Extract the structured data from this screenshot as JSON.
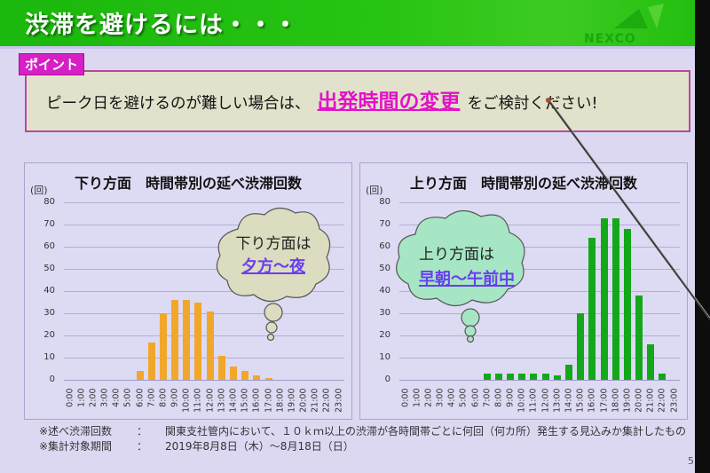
{
  "header": {
    "title": "渋滞を避けるには・・・",
    "logo_text": "NEXCO"
  },
  "point": {
    "tag": "ポイント",
    "text_before": "ピーク日を避けるのが難しい場合は、",
    "highlight": "出発時間の変更",
    "text_after": "をご検討ください!"
  },
  "colors": {
    "header_green": "#1fbb0f",
    "point_magenta": "#d61fc4",
    "down_bar": "#f0a72a",
    "up_bar": "#12a81a",
    "cloud_left": "#dcdcc0",
    "cloud_right": "#a6e6c4",
    "cloud_em": "#6a3df0"
  },
  "clouds": {
    "left": {
      "line1": "下り方面は",
      "line2": "夕方～夜"
    },
    "right": {
      "line1": "上り方面は",
      "line2": "早朝～午前中"
    }
  },
  "chart_data": [
    {
      "type": "bar",
      "title": "下り方面　時間帯別の延べ渋滞回数",
      "ylabel": "(回)",
      "xlabel": "",
      "ylim": [
        0,
        80
      ],
      "yticks": [
        0,
        10,
        20,
        30,
        40,
        50,
        60,
        70,
        80
      ],
      "grid": true,
      "legend": null,
      "categories": [
        "0:00",
        "1:00",
        "2:00",
        "3:00",
        "4:00",
        "5:00",
        "6:00",
        "7:00",
        "8:00",
        "9:00",
        "10:00",
        "11:00",
        "12:00",
        "13:00",
        "14:00",
        "15:00",
        "16:00",
        "17:00",
        "18:00",
        "19:00",
        "20:00",
        "21:00",
        "22:00",
        "23:00"
      ],
      "values": [
        0,
        0,
        0,
        0,
        0,
        0,
        4,
        17,
        30,
        36,
        36,
        35,
        31,
        11,
        6,
        4,
        2,
        1,
        0,
        0,
        0,
        0,
        0,
        0
      ],
      "color": "#f0a72a"
    },
    {
      "type": "bar",
      "title": "上り方面　時間帯別の延べ渋滞回数",
      "ylabel": "(回)",
      "xlabel": "",
      "ylim": [
        0,
        80
      ],
      "yticks": [
        0,
        10,
        20,
        30,
        40,
        50,
        60,
        70,
        80
      ],
      "grid": true,
      "legend": null,
      "categories": [
        "0:00",
        "1:00",
        "2:00",
        "3:00",
        "4:00",
        "5:00",
        "6:00",
        "7:00",
        "8:00",
        "9:00",
        "10:00",
        "11:00",
        "12:00",
        "13:00",
        "14:00",
        "15:00",
        "16:00",
        "17:00",
        "18:00",
        "19:00",
        "20:00",
        "21:00",
        "22:00",
        "23:00"
      ],
      "values": [
        0,
        0,
        0,
        0,
        0,
        0,
        0,
        3,
        3,
        3,
        3,
        3,
        3,
        2,
        7,
        30,
        64,
        73,
        73,
        68,
        38,
        16,
        3,
        0
      ],
      "color": "#12a81a"
    }
  ],
  "footnotes": [
    {
      "key": "※述べ渋滞回数",
      "colon": "：",
      "value": "関東支社管内において、１０ｋｍ以上の渋滞が各時間帯ごとに何回（何カ所）発生する見込みか集計したもの"
    },
    {
      "key": "※集計対象期間",
      "colon": "：",
      "value": "2019年8月8日（木）～8月18日（日）"
    }
  ],
  "page_number": "5"
}
